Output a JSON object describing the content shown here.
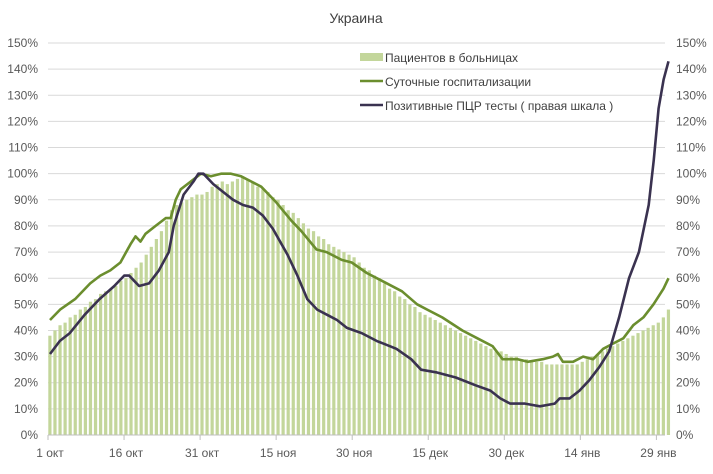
{
  "colors": {
    "bars": "#c3d69b",
    "daily": "#6b8e2e",
    "pcr": "#3a3250",
    "grid": "#d9d9d9"
  },
  "chart_data": {
    "type": "bar+line",
    "title": "Украина",
    "xlabel": "",
    "ylabel": "",
    "ylim": [
      0,
      150
    ],
    "y2lim": [
      0,
      150
    ],
    "grid": true,
    "legend_position": "top-center-right",
    "yticks": [
      "0%",
      "10%",
      "20%",
      "30%",
      "40%",
      "50%",
      "60%",
      "70%",
      "80%",
      "90%",
      "100%",
      "110%",
      "120%",
      "130%",
      "140%",
      "150%"
    ],
    "xticks": [
      {
        "day": 0,
        "label": "1 окт"
      },
      {
        "day": 15,
        "label": "16 окт"
      },
      {
        "day": 30,
        "label": "31 окт"
      },
      {
        "day": 45,
        "label": "15 ноя"
      },
      {
        "day": 60,
        "label": "30 ноя"
      },
      {
        "day": 75,
        "label": "15 дек"
      },
      {
        "day": 90,
        "label": "30 дек"
      },
      {
        "day": 105,
        "label": "14 янв"
      },
      {
        "day": 120,
        "label": "29 янв"
      }
    ],
    "x_days_total": 123,
    "series": [
      {
        "name": "Пациентов в больницах",
        "type": "bar",
        "axis": "left",
        "values": [
          38,
          40,
          42,
          43,
          45,
          46,
          48,
          49,
          51,
          52,
          54,
          55,
          56,
          57,
          59,
          60,
          62,
          64,
          66,
          69,
          72,
          75,
          78,
          82,
          86,
          88,
          89,
          90,
          91,
          92,
          92,
          93,
          95,
          96,
          97,
          96,
          97,
          98,
          99,
          98,
          97,
          95,
          94,
          93,
          91,
          90,
          88,
          86,
          85,
          83,
          81,
          79,
          78,
          76,
          75,
          73,
          72,
          71,
          70,
          69,
          68,
          66,
          64,
          63,
          61,
          60,
          58,
          56,
          55,
          53,
          52,
          50,
          49,
          47,
          46,
          45,
          44,
          43,
          42,
          41,
          40,
          39,
          38,
          37,
          36,
          35,
          34,
          33,
          32,
          32,
          31,
          30,
          30,
          29,
          29,
          28,
          28,
          28,
          27,
          27,
          27,
          27,
          27,
          27,
          27,
          28,
          29,
          30,
          31,
          32,
          33,
          34,
          35,
          36,
          37,
          38,
          39,
          40,
          41,
          42,
          43,
          45,
          48
        ]
      },
      {
        "name": "Суточные госпитализации",
        "type": "line",
        "axis": "left",
        "points": [
          [
            0,
            44
          ],
          [
            2,
            48
          ],
          [
            5,
            52
          ],
          [
            8,
            58
          ],
          [
            10,
            61
          ],
          [
            12,
            63
          ],
          [
            14,
            66
          ],
          [
            16,
            73
          ],
          [
            17,
            76
          ],
          [
            18,
            74
          ],
          [
            19,
            77
          ],
          [
            21,
            80
          ],
          [
            23,
            83
          ],
          [
            24,
            83
          ],
          [
            25,
            90
          ],
          [
            26,
            94
          ],
          [
            28,
            97
          ],
          [
            30,
            100
          ],
          [
            32,
            99
          ],
          [
            34,
            100
          ],
          [
            36,
            100
          ],
          [
            38,
            99
          ],
          [
            40,
            97
          ],
          [
            42,
            95
          ],
          [
            45,
            89
          ],
          [
            48,
            82
          ],
          [
            50,
            78
          ],
          [
            53,
            71
          ],
          [
            55,
            70
          ],
          [
            58,
            67
          ],
          [
            60,
            66
          ],
          [
            63,
            62
          ],
          [
            66,
            59
          ],
          [
            70,
            55
          ],
          [
            73,
            50
          ],
          [
            75,
            48
          ],
          [
            78,
            45
          ],
          [
            82,
            40
          ],
          [
            85,
            37
          ],
          [
            88,
            34
          ],
          [
            90,
            29
          ],
          [
            93,
            29
          ],
          [
            95,
            28
          ],
          [
            98,
            29
          ],
          [
            100,
            30
          ],
          [
            101,
            31
          ],
          [
            102,
            28
          ],
          [
            104,
            28
          ],
          [
            106,
            30
          ],
          [
            108,
            29
          ],
          [
            110,
            33
          ],
          [
            112,
            35
          ],
          [
            114,
            37
          ],
          [
            116,
            42
          ],
          [
            118,
            45
          ],
          [
            120,
            50
          ],
          [
            122,
            56
          ],
          [
            123,
            60
          ]
        ]
      },
      {
        "name": "Позитивные ПЦР тесты ( правая шкала )",
        "type": "line",
        "axis": "right",
        "points": [
          [
            0,
            31
          ],
          [
            2,
            36
          ],
          [
            4,
            39
          ],
          [
            7,
            46
          ],
          [
            10,
            52
          ],
          [
            13,
            57
          ],
          [
            15,
            61
          ],
          [
            16,
            61
          ],
          [
            17,
            59
          ],
          [
            18,
            57
          ],
          [
            20,
            58
          ],
          [
            22,
            63
          ],
          [
            24,
            70
          ],
          [
            25,
            80
          ],
          [
            27,
            92
          ],
          [
            29,
            97
          ],
          [
            30,
            100
          ],
          [
            31,
            100
          ],
          [
            33,
            96
          ],
          [
            35,
            93
          ],
          [
            37,
            90
          ],
          [
            39,
            88
          ],
          [
            41,
            87
          ],
          [
            43,
            84
          ],
          [
            45,
            79
          ],
          [
            48,
            69
          ],
          [
            50,
            61
          ],
          [
            52,
            52
          ],
          [
            54,
            48
          ],
          [
            56,
            46
          ],
          [
            58,
            44
          ],
          [
            60,
            41
          ],
          [
            63,
            39
          ],
          [
            66,
            36
          ],
          [
            70,
            33
          ],
          [
            73,
            29
          ],
          [
            75,
            25
          ],
          [
            78,
            24
          ],
          [
            82,
            22
          ],
          [
            86,
            19
          ],
          [
            89,
            17
          ],
          [
            91,
            14
          ],
          [
            93,
            12
          ],
          [
            96,
            12
          ],
          [
            99,
            11
          ],
          [
            102,
            12
          ],
          [
            103,
            14
          ],
          [
            105,
            14
          ],
          [
            107,
            17
          ],
          [
            109,
            21
          ],
          [
            111,
            26
          ],
          [
            113,
            32
          ],
          [
            115,
            45
          ],
          [
            117,
            60
          ],
          [
            119,
            70
          ],
          [
            121,
            88
          ],
          [
            122,
            105
          ],
          [
            123,
            125
          ],
          [
            124,
            136
          ],
          [
            125,
            143
          ]
        ]
      }
    ]
  }
}
